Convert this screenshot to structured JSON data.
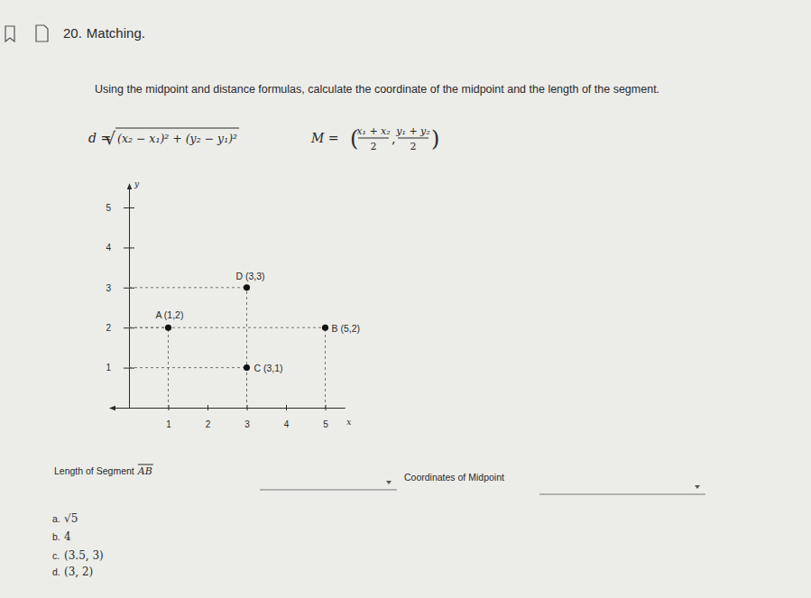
{
  "header": {
    "number": "20.",
    "title": "Matching."
  },
  "instruction": "Using the midpoint and distance formulas, calculate the coordinate of the midpoint and the length of the segment.",
  "formulas": {
    "distance": {
      "lhs": "d =",
      "radical": "√",
      "radicand": "(x₂ − x₁)² + (y₂ − y₁)²"
    },
    "midpoint": {
      "lhs": "M =",
      "open": "(",
      "x_numerator": "x₁ + x₂",
      "y_numerator": "y₁ + y₂",
      "denominator": "2",
      "separator": ",",
      "close": ")"
    }
  },
  "chart_data": {
    "type": "scatter",
    "x": [
      1,
      5,
      3,
      3
    ],
    "values": [
      2,
      2,
      1,
      3
    ],
    "point_labels": [
      "A (1,2)",
      "B (5,2)",
      "C (3,1)",
      "D (3,3)"
    ],
    "x_label": "x",
    "y_label": "y",
    "xlim": [
      -0.5,
      5.5
    ],
    "ylim": [
      0,
      5.6
    ],
    "xticks": [
      1,
      2,
      3,
      4,
      5
    ],
    "yticks": [
      1,
      2,
      3,
      4,
      5
    ],
    "marker": "circle",
    "color": "#111111"
  },
  "questions": [
    {
      "label": "Length of Segment",
      "segment": "AB"
    },
    {
      "label": "Coordinates of Midpoint"
    }
  ],
  "options": [
    {
      "letter": "a.",
      "text": "√5"
    },
    {
      "letter": "b.",
      "text": "4"
    },
    {
      "letter": "c.",
      "text": "(3.5, 3)"
    },
    {
      "letter": "d.",
      "text": "(3, 2)"
    }
  ]
}
